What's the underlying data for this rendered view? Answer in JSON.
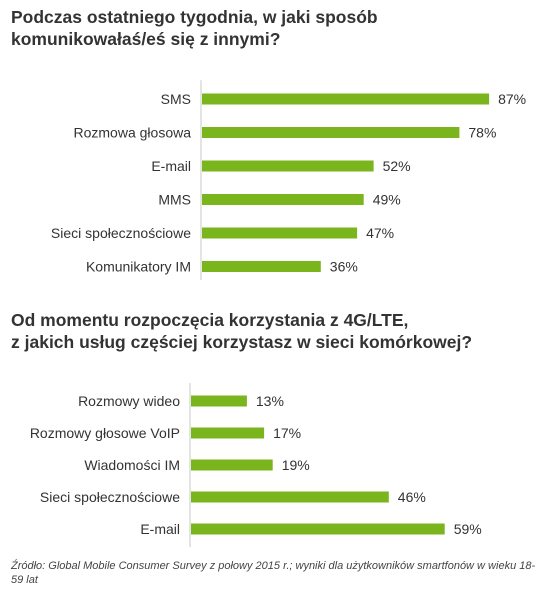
{
  "chart_data": [
    {
      "type": "bar",
      "orientation": "horizontal",
      "title": "Podczas ostatniego tygodnia, w jaki sposób komunikowałaś/eś się z innymi?",
      "title_lines": [
        "Podczas ostatniego tygodnia, w jaki sposób",
        "komunikowałaś/eś się z innymi?"
      ],
      "categories": [
        "SMS",
        "Rozmowa głosowa",
        "E-mail",
        "MMS",
        "Sieci społecznościowe",
        "Komunikatory IM"
      ],
      "values": [
        87,
        78,
        52,
        49,
        47,
        36
      ],
      "value_labels": [
        "87%",
        "78%",
        "52%",
        "49%",
        "47%",
        "36%"
      ],
      "unit": "%",
      "bar_color": "#7ab51d",
      "axis_color": "#c8c8c8",
      "xlim": [
        0,
        100
      ],
      "grid": false,
      "legend": "none"
    },
    {
      "type": "bar",
      "orientation": "horizontal",
      "title": "Od momentu rozpoczęcia korzystania z 4G/LTE, z jakich usług częściej korzystasz w sieci komórkowej?",
      "title_lines": [
        "Od momentu rozpoczęcia korzystania z 4G/LTE,",
        "z jakich usług częściej korzystasz w sieci komórkowej?"
      ],
      "categories": [
        "Rozmowy wideo",
        "Rozmowy głosowe VoIP",
        "Wiadomości IM",
        "Sieci społecznościowe",
        "E-mail"
      ],
      "values": [
        13,
        17,
        19,
        46,
        59
      ],
      "value_labels": [
        "13%",
        "17%",
        "19%",
        "46%",
        "59%"
      ],
      "unit": "%",
      "bar_color": "#7ab51d",
      "axis_color": "#c8c8c8",
      "xlim": [
        0,
        100
      ],
      "grid": false,
      "legend": "none"
    }
  ],
  "source_note": "Źródło: Global Mobile Consumer Survey z połowy 2015 r.; wyniki dla użytkowników smartfonów w wieku 18-59 lat"
}
